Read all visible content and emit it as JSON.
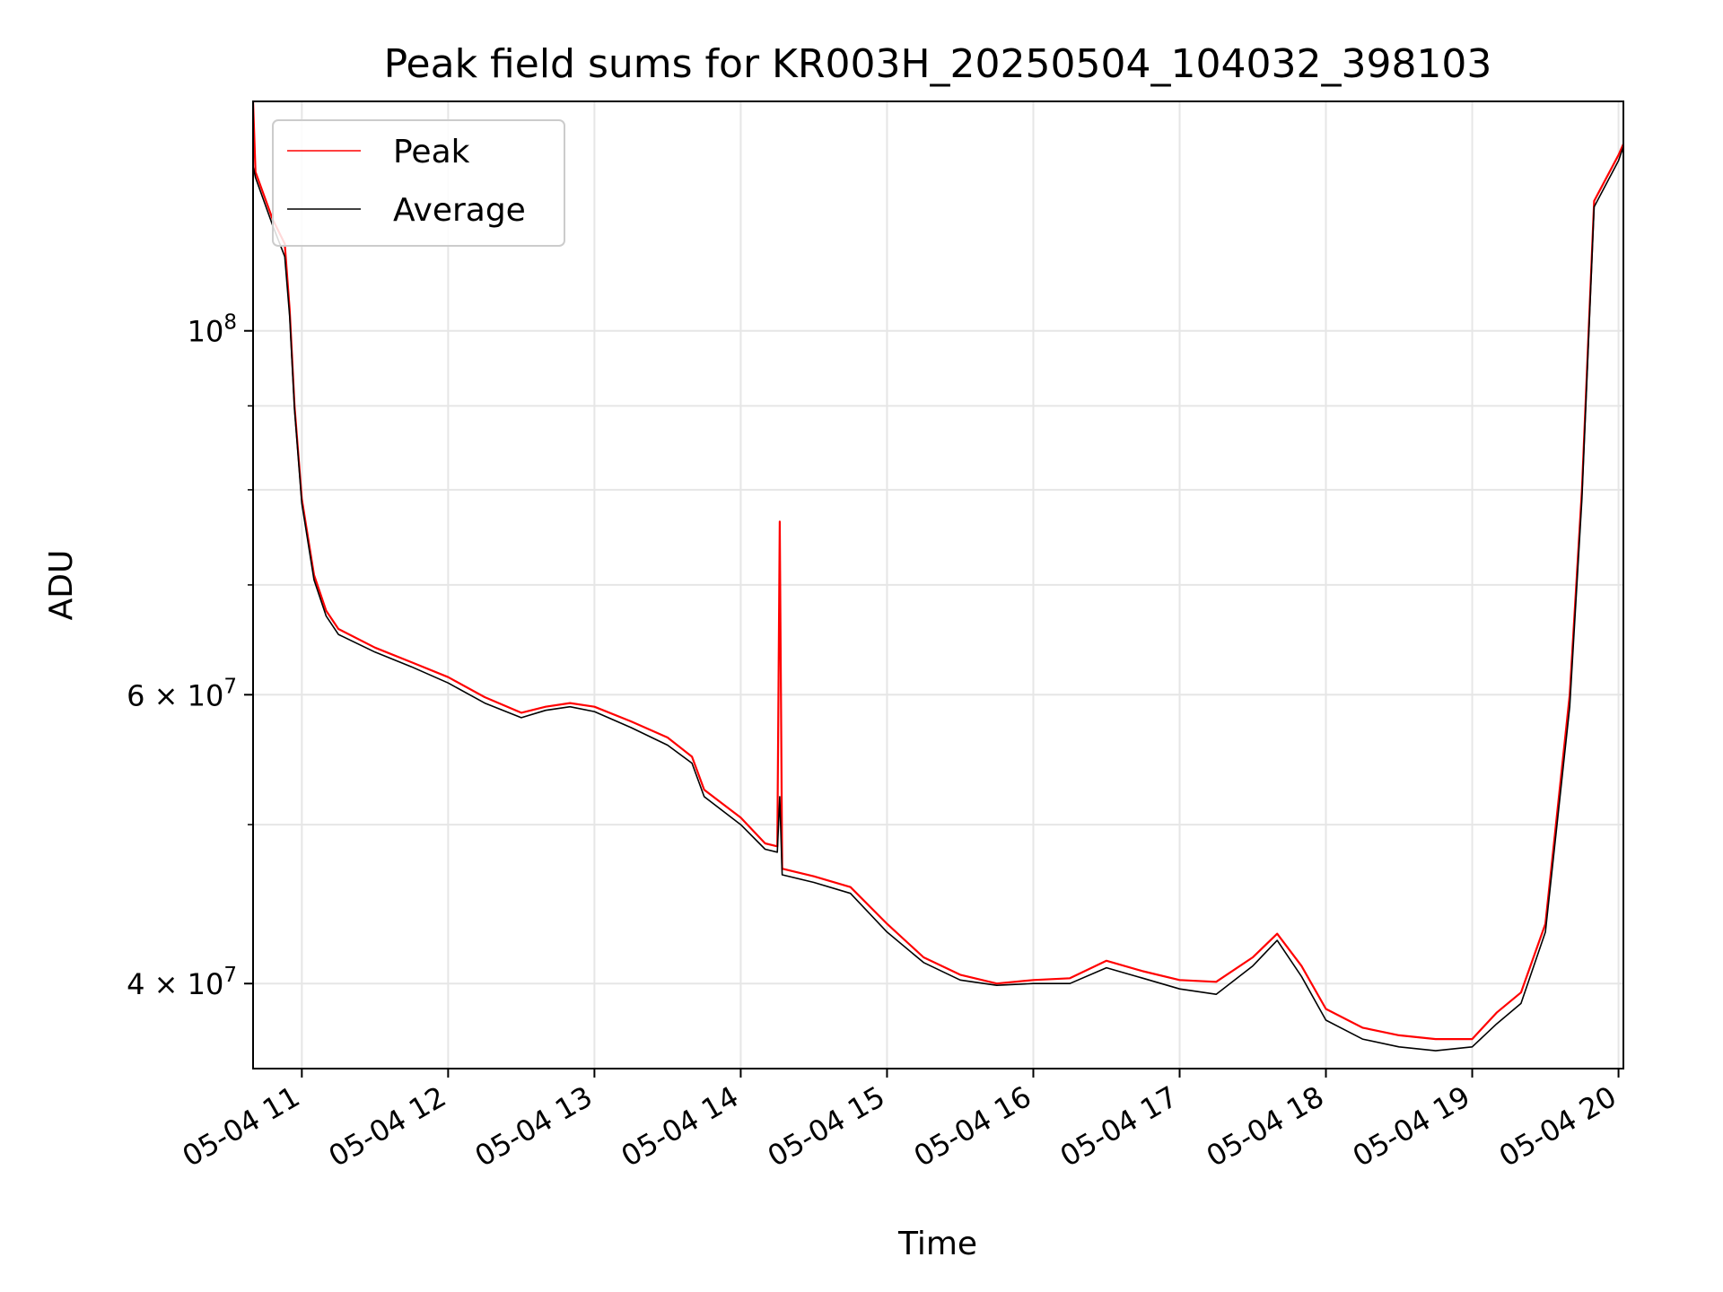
{
  "chart_data": {
    "type": "line",
    "title": "Peak field sums for KR003H_20250504_104032_398103",
    "xlabel": "Time",
    "ylabel": "ADU",
    "yscale": "log",
    "grid": true,
    "legend_position": "upper-left",
    "xlim": [
      "2025-05-04 10:40",
      "2025-05-04 20:02"
    ],
    "ylim": [
      35500000,
      138000000
    ],
    "x_ticks": [
      {
        "value": "2025-05-04 11:00",
        "label": "05-04 11"
      },
      {
        "value": "2025-05-04 12:00",
        "label": "05-04 12"
      },
      {
        "value": "2025-05-04 13:00",
        "label": "05-04 13"
      },
      {
        "value": "2025-05-04 14:00",
        "label": "05-04 14"
      },
      {
        "value": "2025-05-04 15:00",
        "label": "05-04 15"
      },
      {
        "value": "2025-05-04 16:00",
        "label": "05-04 16"
      },
      {
        "value": "2025-05-04 17:00",
        "label": "05-04 17"
      },
      {
        "value": "2025-05-04 18:00",
        "label": "05-04 18"
      },
      {
        "value": "2025-05-04 19:00",
        "label": "05-04 19"
      },
      {
        "value": "2025-05-04 20:00",
        "label": "05-04 20"
      }
    ],
    "y_major_ticks": [
      {
        "value": 40000000,
        "mantissa": "4",
        "exp": "7"
      },
      {
        "value": 60000000,
        "mantissa": "6",
        "exp": "7"
      },
      {
        "value": 100000000,
        "mantissa": "",
        "exp": "8"
      }
    ],
    "y_minor_ticks": [
      50000000,
      70000000,
      80000000,
      90000000
    ],
    "series": [
      {
        "name": "Peak",
        "color": "#ff0000",
        "x": [
          "2025-05-04 10:40",
          "2025-05-04 10:41",
          "2025-05-04 10:48",
          "2025-05-04 10:53",
          "2025-05-04 10:55",
          "2025-05-04 10:57",
          "2025-05-04 11:00",
          "2025-05-04 11:05",
          "2025-05-04 11:10",
          "2025-05-04 11:15",
          "2025-05-04 11:30",
          "2025-05-04 11:45",
          "2025-05-04 12:00",
          "2025-05-04 12:15",
          "2025-05-04 12:30",
          "2025-05-04 12:40",
          "2025-05-04 12:50",
          "2025-05-04 13:00",
          "2025-05-04 13:15",
          "2025-05-04 13:30",
          "2025-05-04 13:40",
          "2025-05-04 13:45",
          "2025-05-04 14:00",
          "2025-05-04 14:10",
          "2025-05-04 14:15",
          "2025-05-04 14:16",
          "2025-05-04 14:17",
          "2025-05-04 14:30",
          "2025-05-04 14:45",
          "2025-05-04 15:00",
          "2025-05-04 15:15",
          "2025-05-04 15:30",
          "2025-05-04 15:45",
          "2025-05-04 16:00",
          "2025-05-04 16:15",
          "2025-05-04 16:30",
          "2025-05-04 16:45",
          "2025-05-04 17:00",
          "2025-05-04 17:15",
          "2025-05-04 17:30",
          "2025-05-04 17:40",
          "2025-05-04 17:50",
          "2025-05-04 18:00",
          "2025-05-04 18:15",
          "2025-05-04 18:30",
          "2025-05-04 18:45",
          "2025-05-04 19:00",
          "2025-05-04 19:10",
          "2025-05-04 19:20",
          "2025-05-04 19:30",
          "2025-05-04 19:40",
          "2025-05-04 19:45",
          "2025-05-04 19:50",
          "2025-05-04 20:00",
          "2025-05-04 20:02"
        ],
        "y": [
          138000000,
          125000000,
          117000000,
          113000000,
          103000000,
          90000000,
          79000000,
          71000000,
          67500000,
          65800000,
          64100000,
          62800000,
          61500000,
          59800000,
          58500000,
          59000000,
          59300000,
          59000000,
          57800000,
          56500000,
          55000000,
          52500000,
          50500000,
          48700000,
          48500000,
          76500000,
          47000000,
          46500000,
          45800000,
          43500000,
          41500000,
          40500000,
          40000000,
          40200000,
          40300000,
          41300000,
          40700000,
          40200000,
          40100000,
          41500000,
          42900000,
          41000000,
          38600000,
          37600000,
          37200000,
          37000000,
          37000000,
          38400000,
          39500000,
          43500000,
          60000000,
          80000000,
          120000000,
          128000000,
          130000000
        ]
      },
      {
        "name": "Average",
        "color": "#000000",
        "x": [
          "2025-05-04 10:40",
          "2025-05-04 10:41",
          "2025-05-04 10:48",
          "2025-05-04 10:53",
          "2025-05-04 10:55",
          "2025-05-04 10:57",
          "2025-05-04 11:00",
          "2025-05-04 11:05",
          "2025-05-04 11:10",
          "2025-05-04 11:15",
          "2025-05-04 11:30",
          "2025-05-04 11:45",
          "2025-05-04 12:00",
          "2025-05-04 12:15",
          "2025-05-04 12:30",
          "2025-05-04 12:40",
          "2025-05-04 12:50",
          "2025-05-04 13:00",
          "2025-05-04 13:15",
          "2025-05-04 13:30",
          "2025-05-04 13:40",
          "2025-05-04 13:45",
          "2025-05-04 14:00",
          "2025-05-04 14:10",
          "2025-05-04 14:15",
          "2025-05-04 14:16",
          "2025-05-04 14:17",
          "2025-05-04 14:30",
          "2025-05-04 14:45",
          "2025-05-04 15:00",
          "2025-05-04 15:15",
          "2025-05-04 15:30",
          "2025-05-04 15:45",
          "2025-05-04 16:00",
          "2025-05-04 16:15",
          "2025-05-04 16:30",
          "2025-05-04 16:45",
          "2025-05-04 17:00",
          "2025-05-04 17:15",
          "2025-05-04 17:30",
          "2025-05-04 17:40",
          "2025-05-04 17:50",
          "2025-05-04 18:00",
          "2025-05-04 18:15",
          "2025-05-04 18:30",
          "2025-05-04 18:45",
          "2025-05-04 19:00",
          "2025-05-04 19:10",
          "2025-05-04 19:20",
          "2025-05-04 19:30",
          "2025-05-04 19:40",
          "2025-05-04 19:45",
          "2025-05-04 19:50",
          "2025-05-04 20:00",
          "2025-05-04 20:02"
        ],
        "y": [
          126000000,
          124000000,
          116000000,
          111000000,
          102000000,
          89500000,
          78500000,
          70500000,
          67000000,
          65300000,
          63700000,
          62400000,
          61000000,
          59300000,
          58100000,
          58700000,
          59000000,
          58600000,
          57300000,
          55900000,
          54500000,
          52000000,
          50000000,
          48300000,
          48100000,
          52000000,
          46600000,
          46100000,
          45400000,
          43000000,
          41200000,
          40200000,
          39900000,
          40000000,
          40000000,
          40900000,
          40300000,
          39700000,
          39400000,
          41000000,
          42500000,
          40400000,
          38000000,
          37000000,
          36600000,
          36400000,
          36600000,
          37800000,
          38900000,
          43000000,
          59000000,
          79000000,
          119000000,
          127000000,
          129500000
        ]
      }
    ]
  }
}
